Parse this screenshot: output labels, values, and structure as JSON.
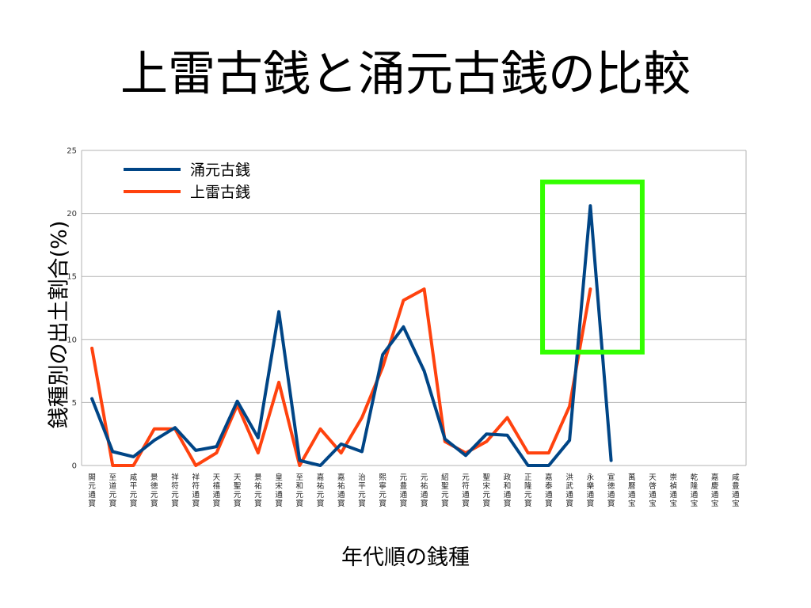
{
  "slide": {
    "title": "上雷古銭と涌元古銭の比較"
  },
  "chart_data": {
    "type": "line",
    "xlabel": "年代順の銭種",
    "ylabel": "銭種別の出土割合(%)",
    "ylim": [
      0,
      25
    ],
    "yticks": [
      "0",
      "5",
      "10",
      "15",
      "20",
      "25"
    ],
    "grid": true,
    "legend_position": "top-left",
    "categories": [
      "開元通寳",
      "至道元寳",
      "咸平元寳",
      "景徳元寳",
      "祥符元寳",
      "祥符通寳",
      "天禧通寳",
      "天聖元寳",
      "景祐元寳",
      "皇宋通寳",
      "至和元寳",
      "嘉祐元寳",
      "嘉祐通寳",
      "治平元寳",
      "熙寧元寳",
      "元豊通寳",
      "元祐通寳",
      "紹聖元寳",
      "元符通寳",
      "聖宋元寳",
      "政和通寳",
      "正隆元寳",
      "嘉泰通寳",
      "洪武通寳",
      "永樂通寳",
      "宣徳通寳",
      "萬曆通宝",
      "天啓通宝",
      "崇禎通宝",
      "乾隆通宝",
      "嘉慶通宝",
      "咸豊通宝"
    ],
    "series": [
      {
        "name": "涌元古銭",
        "color": "#004586",
        "values": [
          5.3,
          1.1,
          0.7,
          2.0,
          3.0,
          1.2,
          1.5,
          5.1,
          2.2,
          12.2,
          0.4,
          0.0,
          1.7,
          1.1,
          8.8,
          11.0,
          7.5,
          2.1,
          0.8,
          2.5,
          2.4,
          0.0,
          0.0,
          2.0,
          20.6,
          0.4,
          null,
          null,
          null,
          null,
          null,
          null
        ]
      },
      {
        "name": "上雷古銭",
        "color": "#ff420e",
        "values": [
          9.3,
          0.0,
          0.0,
          2.9,
          2.9,
          0.0,
          1.0,
          4.8,
          1.0,
          6.6,
          0.0,
          2.9,
          1.0,
          3.8,
          7.8,
          13.1,
          14.0,
          1.9,
          1.0,
          1.9,
          3.8,
          1.0,
          1.0,
          4.7,
          14.0,
          null,
          null,
          null,
          null,
          null,
          null,
          null
        ]
      }
    ],
    "highlight": {
      "color": "#33ff00",
      "x_range": [
        "永樂通寳"
      ],
      "y_range": [
        9,
        22.5
      ]
    }
  }
}
